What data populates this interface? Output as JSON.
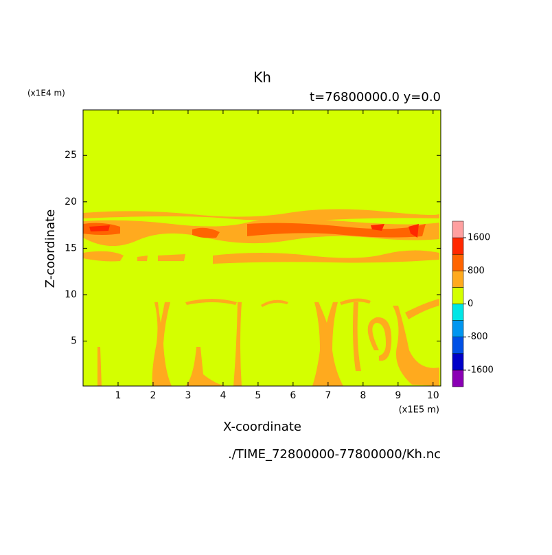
{
  "chart_data": {
    "type": "contour",
    "title": "Kh",
    "subtitle": "t=76800000.0 y=0.0",
    "x_label": "X-coordinate",
    "y_label": "Z-coordinate",
    "x_unit": "(x1E5 m)",
    "y_unit": "(x1E4 m)",
    "source": "./TIME_72800000-77800000/Kh.nc",
    "xlim": [
      0,
      10.22
    ],
    "xticks": [
      1,
      2,
      3,
      4,
      5,
      6,
      7,
      8,
      9,
      10
    ],
    "ylim": [
      0.16,
      29.9
    ],
    "yticks": [
      5,
      10,
      15,
      20,
      25
    ],
    "colorbar_levels": [
      -1600,
      -1200,
      -800,
      -400,
      0,
      400,
      800,
      1200,
      1600
    ],
    "colorbar_ticks": [
      -1600,
      -800,
      0,
      800,
      1600
    ],
    "colors": [
      "#8a00b4",
      "#0000c8",
      "#0050e6",
      "#0096f0",
      "#00e6e6",
      "#d4ff00",
      "#ffaa1e",
      "#ff6400",
      "#ff2800",
      "#ffa0a0"
    ]
  }
}
